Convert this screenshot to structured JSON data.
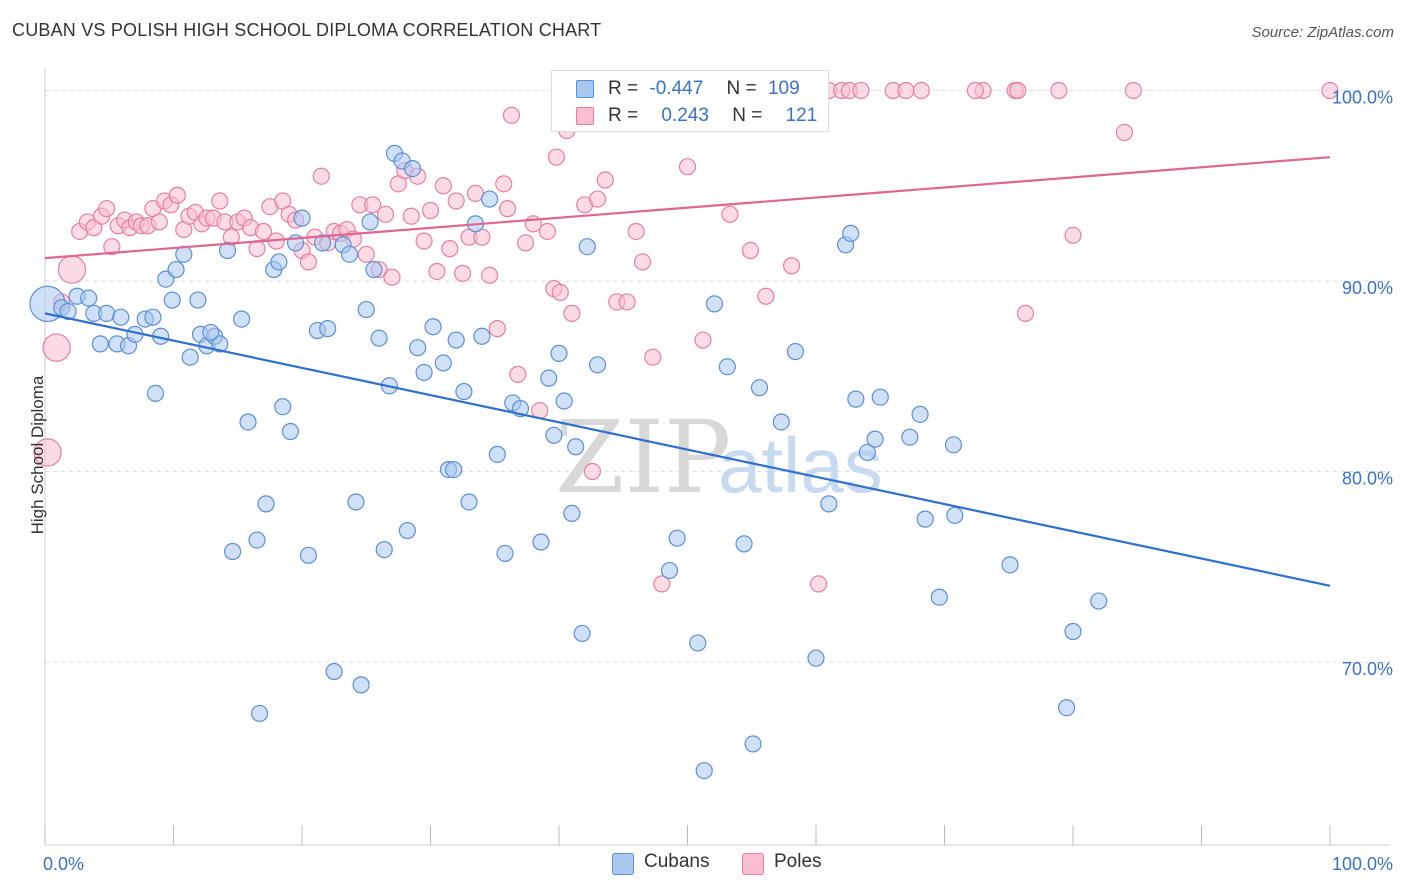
{
  "header": {
    "title": "CUBAN VS POLISH HIGH SCHOOL DIPLOMA CORRELATION CHART",
    "source": "Source: ZipAtlas.com"
  },
  "legend": {
    "cubans": {
      "r_label": "R =",
      "r_value": "-0.447",
      "n_label": "N =",
      "n_value": "109"
    },
    "poles": {
      "r_label": "R =",
      "r_value": "0.243",
      "n_label": "N =",
      "n_value": "121"
    }
  },
  "bottom_legend": {
    "cubans": "Cubans",
    "poles": "Poles"
  },
  "watermark": {
    "zip": "ZIP",
    "atlas": "atlas"
  },
  "colors": {
    "cubans_fill": "#a9c8f0",
    "cubans_edge": "#5b8fd6",
    "cubans_line": "#2f6fcf",
    "poles_fill": "#f7bfd0",
    "poles_edge": "#e87fa0",
    "poles_line": "#e06690",
    "tick_label": "#3a72c7",
    "grid": "#dddddd"
  },
  "chart_data": {
    "type": "scatter",
    "title": "CUBAN VS POLISH HIGH SCHOOL DIPLOMA CORRELATION CHART",
    "xlabel": "",
    "ylabel": "High School Diploma",
    "xlim": [
      0,
      100
    ],
    "ylim": [
      60.5,
      101.5
    ],
    "x_ticks": [
      0,
      10,
      20,
      30,
      40,
      50,
      60,
      70,
      80,
      90,
      100
    ],
    "x_tick_labels": [
      {
        "value": 0,
        "label": "0.0%"
      },
      {
        "value": 100,
        "label": "100.0%"
      }
    ],
    "y_ticks": [
      {
        "value": 70,
        "label": "70.0%"
      },
      {
        "value": 80,
        "label": "80.0%"
      },
      {
        "value": 90,
        "label": "90.0%"
      },
      {
        "value": 100,
        "label": "100.0%"
      }
    ],
    "grid": "horizontal dashed",
    "legend_placement": "top-center",
    "series": [
      {
        "name": "Cubans",
        "r": -0.447,
        "n": 109,
        "trend": {
          "x": [
            0,
            100
          ],
          "y": [
            88.3,
            74.0
          ]
        },
        "points": [
          {
            "x": 0.2,
            "y": 88.8,
            "s": 2.2
          },
          {
            "x": 1.3,
            "y": 88.6
          },
          {
            "x": 1.8,
            "y": 88.4
          },
          {
            "x": 2.5,
            "y": 89.2
          },
          {
            "x": 3.4,
            "y": 89.1
          },
          {
            "x": 3.8,
            "y": 88.3
          },
          {
            "x": 4.3,
            "y": 86.7
          },
          {
            "x": 4.8,
            "y": 88.3
          },
          {
            "x": 5.6,
            "y": 86.7
          },
          {
            "x": 5.9,
            "y": 88.1
          },
          {
            "x": 6.5,
            "y": 86.6
          },
          {
            "x": 7.0,
            "y": 87.2
          },
          {
            "x": 7.8,
            "y": 88.0
          },
          {
            "x": 8.4,
            "y": 88.1
          },
          {
            "x": 8.6,
            "y": 84.1
          },
          {
            "x": 9.0,
            "y": 87.1
          },
          {
            "x": 9.4,
            "y": 90.1
          },
          {
            "x": 9.9,
            "y": 89.0
          },
          {
            "x": 10.2,
            "y": 90.6
          },
          {
            "x": 10.8,
            "y": 91.4
          },
          {
            "x": 11.3,
            "y": 86.0
          },
          {
            "x": 11.9,
            "y": 89.0
          },
          {
            "x": 12.1,
            "y": 87.2
          },
          {
            "x": 12.6,
            "y": 86.6
          },
          {
            "x": 13.2,
            "y": 87.1
          },
          {
            "x": 13.6,
            "y": 86.7
          },
          {
            "x": 14.2,
            "y": 91.6
          },
          {
            "x": 14.6,
            "y": 75.8
          },
          {
            "x": 15.3,
            "y": 88.0
          },
          {
            "x": 15.8,
            "y": 82.6
          },
          {
            "x": 16.5,
            "y": 76.4
          },
          {
            "x": 16.7,
            "y": 67.3
          },
          {
            "x": 17.2,
            "y": 78.3
          },
          {
            "x": 17.8,
            "y": 90.6
          },
          {
            "x": 18.5,
            "y": 83.4
          },
          {
            "x": 19.1,
            "y": 82.1
          },
          {
            "x": 19.5,
            "y": 92.0
          },
          {
            "x": 20.0,
            "y": 93.3
          },
          {
            "x": 20.5,
            "y": 75.6
          },
          {
            "x": 21.2,
            "y": 87.4
          },
          {
            "x": 21.6,
            "y": 92.0
          },
          {
            "x": 22.0,
            "y": 87.5
          },
          {
            "x": 22.5,
            "y": 69.5
          },
          {
            "x": 23.2,
            "y": 91.9
          },
          {
            "x": 23.7,
            "y": 91.4
          },
          {
            "x": 24.2,
            "y": 78.4
          },
          {
            "x": 24.6,
            "y": 68.8
          },
          {
            "x": 25.0,
            "y": 88.5
          },
          {
            "x": 25.6,
            "y": 90.6
          },
          {
            "x": 26.0,
            "y": 87.0
          },
          {
            "x": 26.4,
            "y": 75.9
          },
          {
            "x": 26.8,
            "y": 84.5
          },
          {
            "x": 27.2,
            "y": 96.7
          },
          {
            "x": 27.8,
            "y": 96.3
          },
          {
            "x": 28.2,
            "y": 76.9
          },
          {
            "x": 28.6,
            "y": 95.9
          },
          {
            "x": 29.0,
            "y": 86.5
          },
          {
            "x": 29.5,
            "y": 85.2
          },
          {
            "x": 30.2,
            "y": 87.6
          },
          {
            "x": 31.0,
            "y": 85.7
          },
          {
            "x": 31.4,
            "y": 80.1
          },
          {
            "x": 32.0,
            "y": 86.9
          },
          {
            "x": 32.6,
            "y": 84.2
          },
          {
            "x": 33.0,
            "y": 78.4
          },
          {
            "x": 33.5,
            "y": 93.0
          },
          {
            "x": 34.0,
            "y": 87.1
          },
          {
            "x": 34.6,
            "y": 94.3
          },
          {
            "x": 35.2,
            "y": 80.9
          },
          {
            "x": 35.8,
            "y": 75.7
          },
          {
            "x": 36.4,
            "y": 83.6
          },
          {
            "x": 37.0,
            "y": 83.3
          },
          {
            "x": 38.6,
            "y": 76.3
          },
          {
            "x": 39.2,
            "y": 84.9
          },
          {
            "x": 39.6,
            "y": 81.9
          },
          {
            "x": 40.0,
            "y": 86.2
          },
          {
            "x": 40.4,
            "y": 83.7
          },
          {
            "x": 41.0,
            "y": 77.8
          },
          {
            "x": 41.3,
            "y": 81.3
          },
          {
            "x": 41.8,
            "y": 71.5
          },
          {
            "x": 42.2,
            "y": 91.8
          },
          {
            "x": 43.0,
            "y": 85.6
          },
          {
            "x": 48.6,
            "y": 74.8
          },
          {
            "x": 49.2,
            "y": 76.5
          },
          {
            "x": 50.8,
            "y": 71.0
          },
          {
            "x": 51.3,
            "y": 64.3
          },
          {
            "x": 52.1,
            "y": 88.8
          },
          {
            "x": 53.1,
            "y": 85.5
          },
          {
            "x": 54.4,
            "y": 76.2
          },
          {
            "x": 55.6,
            "y": 84.4
          },
          {
            "x": 55.1,
            "y": 65.7
          },
          {
            "x": 57.3,
            "y": 82.6
          },
          {
            "x": 58.4,
            "y": 86.3
          },
          {
            "x": 60.0,
            "y": 70.2
          },
          {
            "x": 61.0,
            "y": 78.3
          },
          {
            "x": 62.3,
            "y": 91.9
          },
          {
            "x": 62.7,
            "y": 92.5
          },
          {
            "x": 63.1,
            "y": 83.8
          },
          {
            "x": 64.0,
            "y": 81.0
          },
          {
            "x": 64.6,
            "y": 81.7
          },
          {
            "x": 65.0,
            "y": 83.9
          },
          {
            "x": 67.3,
            "y": 81.8
          },
          {
            "x": 68.1,
            "y": 83.0
          },
          {
            "x": 68.5,
            "y": 77.5
          },
          {
            "x": 69.6,
            "y": 73.4
          },
          {
            "x": 70.7,
            "y": 81.4
          },
          {
            "x": 70.8,
            "y": 77.7
          },
          {
            "x": 75.1,
            "y": 75.1
          },
          {
            "x": 79.5,
            "y": 67.6
          },
          {
            "x": 80.0,
            "y": 71.6
          },
          {
            "x": 82.0,
            "y": 73.2
          },
          {
            "x": 31.8,
            "y": 80.1
          },
          {
            "x": 25.3,
            "y": 93.1
          },
          {
            "x": 18.2,
            "y": 91.0
          },
          {
            "x": 12.9,
            "y": 87.3
          }
        ]
      },
      {
        "name": "Poles",
        "r": 0.243,
        "n": 121,
        "trend": {
          "x": [
            0,
            100
          ],
          "y": [
            91.2,
            96.5
          ]
        },
        "points": [
          {
            "x": 0.2,
            "y": 81.0,
            "s": 1.7
          },
          {
            "x": 0.9,
            "y": 86.5,
            "s": 1.7
          },
          {
            "x": 1.3,
            "y": 88.9
          },
          {
            "x": 2.1,
            "y": 90.6,
            "s": 1.7
          },
          {
            "x": 2.7,
            "y": 92.6
          },
          {
            "x": 3.3,
            "y": 93.1
          },
          {
            "x": 3.8,
            "y": 92.8
          },
          {
            "x": 4.4,
            "y": 93.4
          },
          {
            "x": 4.8,
            "y": 93.8
          },
          {
            "x": 5.2,
            "y": 91.8
          },
          {
            "x": 5.7,
            "y": 92.9
          },
          {
            "x": 6.2,
            "y": 93.2
          },
          {
            "x": 6.6,
            "y": 92.8
          },
          {
            "x": 7.1,
            "y": 93.1
          },
          {
            "x": 7.5,
            "y": 92.9
          },
          {
            "x": 8.0,
            "y": 92.9
          },
          {
            "x": 8.4,
            "y": 93.8
          },
          {
            "x": 8.9,
            "y": 93.1
          },
          {
            "x": 9.3,
            "y": 94.2
          },
          {
            "x": 9.8,
            "y": 94.0
          },
          {
            "x": 10.3,
            "y": 94.5
          },
          {
            "x": 10.8,
            "y": 92.7
          },
          {
            "x": 11.2,
            "y": 93.4
          },
          {
            "x": 11.7,
            "y": 93.6
          },
          {
            "x": 12.2,
            "y": 93.0
          },
          {
            "x": 12.6,
            "y": 93.3
          },
          {
            "x": 13.1,
            "y": 93.3
          },
          {
            "x": 13.6,
            "y": 94.2
          },
          {
            "x": 14.0,
            "y": 93.1
          },
          {
            "x": 14.5,
            "y": 92.3
          },
          {
            "x": 15.0,
            "y": 93.1
          },
          {
            "x": 15.5,
            "y": 93.3
          },
          {
            "x": 16.0,
            "y": 92.8
          },
          {
            "x": 16.5,
            "y": 91.7
          },
          {
            "x": 17.0,
            "y": 92.6
          },
          {
            "x": 17.5,
            "y": 93.9
          },
          {
            "x": 18.0,
            "y": 92.1
          },
          {
            "x": 18.5,
            "y": 94.2
          },
          {
            "x": 19.0,
            "y": 93.5
          },
          {
            "x": 19.5,
            "y": 93.2
          },
          {
            "x": 20.0,
            "y": 91.6
          },
          {
            "x": 20.5,
            "y": 91.0
          },
          {
            "x": 21.0,
            "y": 92.3
          },
          {
            "x": 21.5,
            "y": 95.5
          },
          {
            "x": 22.0,
            "y": 92.0
          },
          {
            "x": 22.5,
            "y": 92.6
          },
          {
            "x": 23.0,
            "y": 92.5
          },
          {
            "x": 23.5,
            "y": 92.7
          },
          {
            "x": 24.0,
            "y": 92.2
          },
          {
            "x": 24.5,
            "y": 94.0
          },
          {
            "x": 25.0,
            "y": 91.4
          },
          {
            "x": 25.5,
            "y": 94.0
          },
          {
            "x": 26.0,
            "y": 90.6
          },
          {
            "x": 26.5,
            "y": 93.5
          },
          {
            "x": 27.0,
            "y": 90.2
          },
          {
            "x": 27.5,
            "y": 95.1
          },
          {
            "x": 28.0,
            "y": 95.8
          },
          {
            "x": 28.5,
            "y": 93.4
          },
          {
            "x": 29.0,
            "y": 95.5
          },
          {
            "x": 29.5,
            "y": 92.1
          },
          {
            "x": 30.0,
            "y": 93.7
          },
          {
            "x": 30.5,
            "y": 90.5
          },
          {
            "x": 31.0,
            "y": 95.0
          },
          {
            "x": 31.5,
            "y": 91.7
          },
          {
            "x": 32.0,
            "y": 94.2
          },
          {
            "x": 32.5,
            "y": 90.4
          },
          {
            "x": 33.0,
            "y": 92.3
          },
          {
            "x": 33.5,
            "y": 94.6
          },
          {
            "x": 34.0,
            "y": 92.3
          },
          {
            "x": 34.6,
            "y": 90.3
          },
          {
            "x": 35.2,
            "y": 87.5
          },
          {
            "x": 35.7,
            "y": 95.1
          },
          {
            "x": 36.3,
            "y": 98.7
          },
          {
            "x": 36.8,
            "y": 85.1
          },
          {
            "x": 37.4,
            "y": 92.0
          },
          {
            "x": 38.0,
            "y": 93.0
          },
          {
            "x": 38.5,
            "y": 83.2
          },
          {
            "x": 39.1,
            "y": 92.6
          },
          {
            "x": 39.6,
            "y": 89.6
          },
          {
            "x": 40.1,
            "y": 89.4
          },
          {
            "x": 40.6,
            "y": 97.9
          },
          {
            "x": 41.0,
            "y": 88.3
          },
          {
            "x": 41.5,
            "y": 100.0
          },
          {
            "x": 42.0,
            "y": 94.0
          },
          {
            "x": 42.6,
            "y": 80.0
          },
          {
            "x": 43.0,
            "y": 94.3
          },
          {
            "x": 43.6,
            "y": 95.3
          },
          {
            "x": 44.5,
            "y": 88.9
          },
          {
            "x": 45.3,
            "y": 88.9
          },
          {
            "x": 46.0,
            "y": 92.6
          },
          {
            "x": 46.5,
            "y": 91.0
          },
          {
            "x": 47.3,
            "y": 86.0
          },
          {
            "x": 48.5,
            "y": 100.0
          },
          {
            "x": 49.0,
            "y": 100.0
          },
          {
            "x": 50.0,
            "y": 96.0
          },
          {
            "x": 51.2,
            "y": 86.9
          },
          {
            "x": 52.0,
            "y": 100.0
          },
          {
            "x": 52.6,
            "y": 100.0
          },
          {
            "x": 53.3,
            "y": 93.5
          },
          {
            "x": 54.0,
            "y": 100.0
          },
          {
            "x": 54.4,
            "y": 100.0
          },
          {
            "x": 54.9,
            "y": 91.6
          },
          {
            "x": 56.1,
            "y": 89.2
          },
          {
            "x": 57.3,
            "y": 100.0
          },
          {
            "x": 58.1,
            "y": 90.8
          },
          {
            "x": 60.2,
            "y": 74.1
          },
          {
            "x": 61.0,
            "y": 100.0
          },
          {
            "x": 62.0,
            "y": 100.0
          },
          {
            "x": 62.6,
            "y": 100.0
          },
          {
            "x": 63.5,
            "y": 100.0
          },
          {
            "x": 66.0,
            "y": 100.0
          },
          {
            "x": 67.0,
            "y": 100.0
          },
          {
            "x": 68.2,
            "y": 100.0
          },
          {
            "x": 73.0,
            "y": 100.0
          },
          {
            "x": 75.5,
            "y": 100.0
          },
          {
            "x": 78.9,
            "y": 100.0
          },
          {
            "x": 80.0,
            "y": 92.4
          },
          {
            "x": 84.7,
            "y": 100.0
          },
          {
            "x": 84.0,
            "y": 97.8
          },
          {
            "x": 75.7,
            "y": 100.0
          },
          {
            "x": 72.4,
            "y": 100.0
          },
          {
            "x": 76.3,
            "y": 88.3
          },
          {
            "x": 48.0,
            "y": 74.1
          },
          {
            "x": 100.0,
            "y": 100.0
          },
          {
            "x": 39.8,
            "y": 96.5
          },
          {
            "x": 36.0,
            "y": 93.8
          }
        ]
      }
    ]
  }
}
